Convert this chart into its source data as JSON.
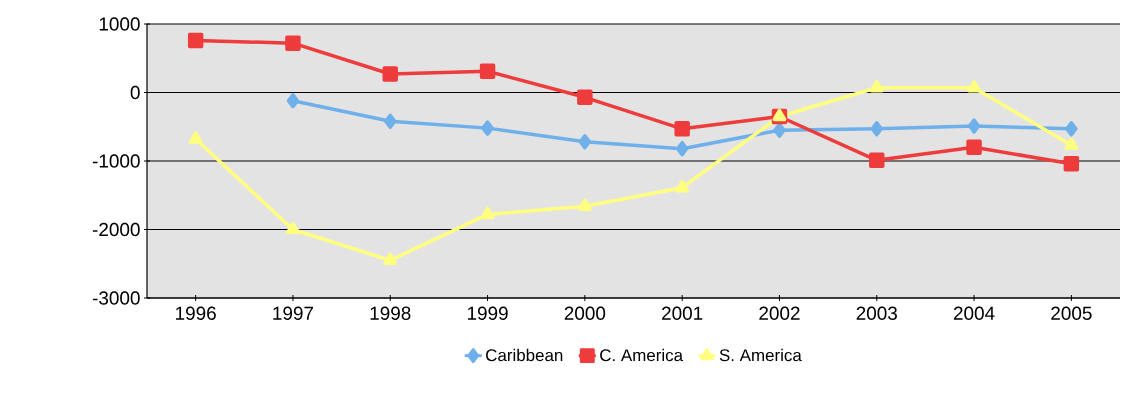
{
  "chart_data": {
    "type": "line",
    "categories": [
      "1996",
      "1997",
      "1998",
      "1999",
      "2000",
      "2001",
      "2002",
      "2003",
      "2004",
      "2005"
    ],
    "series": [
      {
        "name": "Caribbean",
        "color": "#6fb0ea",
        "marker": "diamond",
        "values": [
          null,
          -120,
          -420,
          -520,
          -720,
          -820,
          -550,
          -530,
          -490,
          -530
        ]
      },
      {
        "name": "C. America",
        "color": "#ee3b3b",
        "marker": "square",
        "values": [
          760,
          720,
          270,
          310,
          -70,
          -530,
          -350,
          -990,
          -800,
          -1040
        ]
      },
      {
        "name": "S. America",
        "color": "#ffff80",
        "marker": "triangle",
        "values": [
          -680,
          -2000,
          -2450,
          -1780,
          -1660,
          -1390,
          -350,
          70,
          70,
          -770
        ]
      }
    ],
    "ylim": [
      -3000,
      1000
    ],
    "yticks": [
      -3000,
      -2000,
      -1000,
      0,
      1000
    ],
    "grid": "y",
    "legend": "bottom",
    "line_style": "solid"
  }
}
